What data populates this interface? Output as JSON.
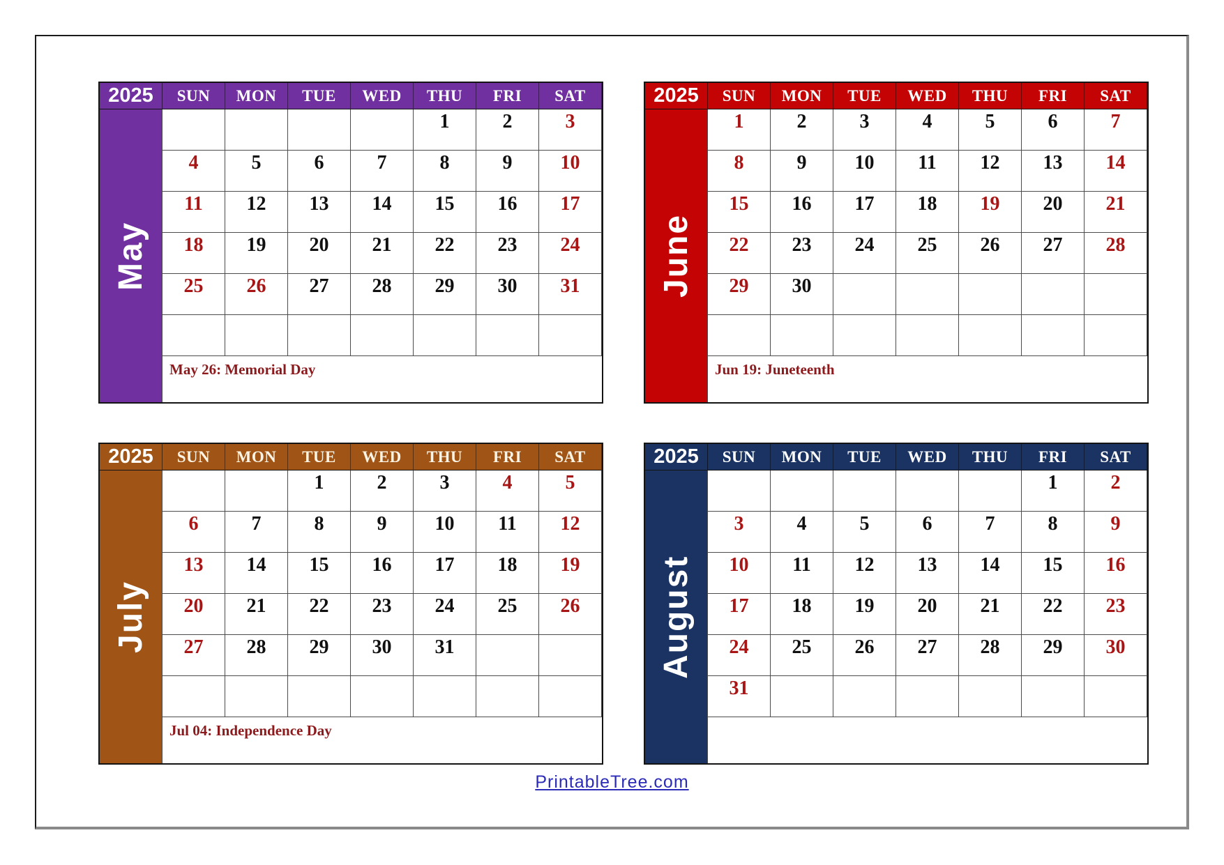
{
  "day_headers": [
    "SUN",
    "MON",
    "TUE",
    "WED",
    "THU",
    "FRI",
    "SAT"
  ],
  "colors": {
    "date_red": "#a91515",
    "holiday_text": "#8c1a1c",
    "may_theme": "#7030a0",
    "june_theme": "#c40404",
    "july_theme": "#a05416",
    "august_theme": "#1b3363"
  },
  "calendars": [
    {
      "month": "May",
      "year": "2025",
      "theme": "#7030a0",
      "day_label_color": "#ffffff",
      "weeks": [
        [
          "",
          "",
          "",
          "",
          "1",
          "2",
          "3"
        ],
        [
          "4",
          "5",
          "6",
          "7",
          "8",
          "9",
          "10"
        ],
        [
          "11",
          "12",
          "13",
          "14",
          "15",
          "16",
          "17"
        ],
        [
          "18",
          "19",
          "20",
          "21",
          "22",
          "23",
          "24"
        ],
        [
          "25",
          "26",
          "27",
          "28",
          "29",
          "30",
          "31"
        ],
        [
          "",
          "",
          "",
          "",
          "",
          "",
          ""
        ]
      ],
      "red_days": [
        3,
        4,
        10,
        11,
        17,
        18,
        24,
        25,
        26,
        31
      ],
      "holiday_note": "May 26: Memorial Day"
    },
    {
      "month": "June",
      "year": "2025",
      "theme": "#c40404",
      "day_label_color": "#ffffff",
      "weeks": [
        [
          "1",
          "2",
          "3",
          "4",
          "5",
          "6",
          "7"
        ],
        [
          "8",
          "9",
          "10",
          "11",
          "12",
          "13",
          "14"
        ],
        [
          "15",
          "16",
          "17",
          "18",
          "19",
          "20",
          "21"
        ],
        [
          "22",
          "23",
          "24",
          "25",
          "26",
          "27",
          "28"
        ],
        [
          "29",
          "30",
          "",
          "",
          "",
          "",
          ""
        ],
        [
          "",
          "",
          "",
          "",
          "",
          "",
          ""
        ]
      ],
      "red_days": [
        1,
        7,
        8,
        14,
        15,
        19,
        21,
        22,
        28,
        29
      ],
      "holiday_note": "Jun 19: Juneteenth"
    },
    {
      "month": "July",
      "year": "2025",
      "theme": "#a05416",
      "day_label_color": "#fbf3e3",
      "weeks": [
        [
          "",
          "",
          "1",
          "2",
          "3",
          "4",
          "5"
        ],
        [
          "6",
          "7",
          "8",
          "9",
          "10",
          "11",
          "12"
        ],
        [
          "13",
          "14",
          "15",
          "16",
          "17",
          "18",
          "19"
        ],
        [
          "20",
          "21",
          "22",
          "23",
          "24",
          "25",
          "26"
        ],
        [
          "27",
          "28",
          "29",
          "30",
          "31",
          "",
          ""
        ],
        [
          "",
          "",
          "",
          "",
          "",
          "",
          ""
        ]
      ],
      "red_days": [
        4,
        5,
        6,
        12,
        13,
        19,
        20,
        26,
        27
      ],
      "holiday_note": "Jul 04: Independence Day"
    },
    {
      "month": "August",
      "year": "2025",
      "theme": "#1b3363",
      "day_label_color": "#ffffff",
      "weeks": [
        [
          "",
          "",
          "",
          "",
          "",
          "1",
          "2"
        ],
        [
          "3",
          "4",
          "5",
          "6",
          "7",
          "8",
          "9"
        ],
        [
          "10",
          "11",
          "12",
          "13",
          "14",
          "15",
          "16"
        ],
        [
          "17",
          "18",
          "19",
          "20",
          "21",
          "22",
          "23"
        ],
        [
          "24",
          "25",
          "26",
          "27",
          "28",
          "29",
          "30"
        ],
        [
          "31",
          "",
          "",
          "",
          "",
          "",
          ""
        ]
      ],
      "red_days": [
        2,
        3,
        9,
        10,
        16,
        17,
        23,
        24,
        30,
        31
      ],
      "holiday_note": ""
    }
  ],
  "footer": {
    "link_text": "PrintableTree.com"
  }
}
